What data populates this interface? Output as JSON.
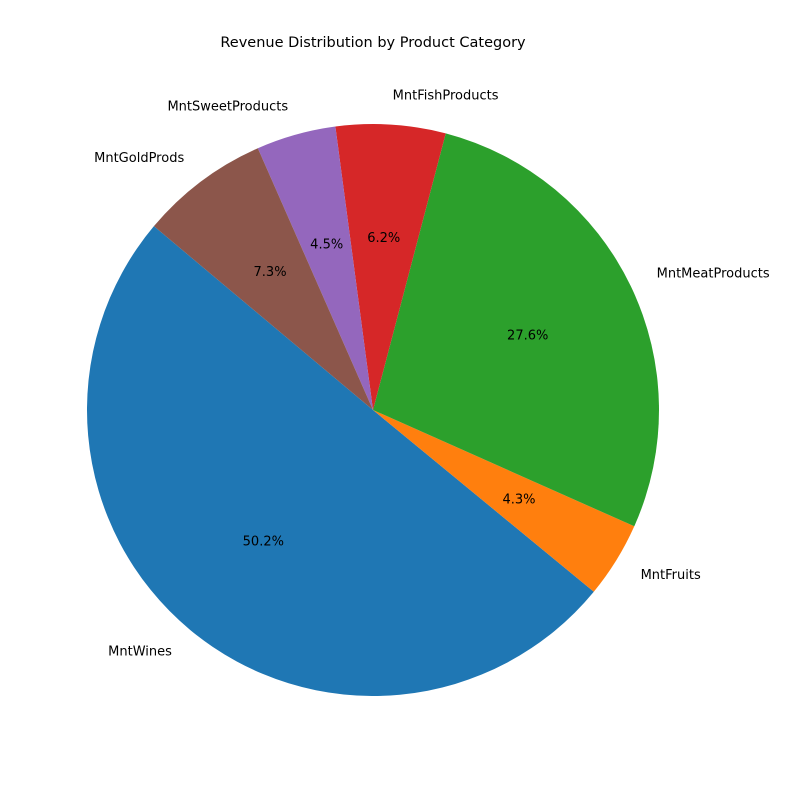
{
  "chart_data": {
    "type": "pie",
    "title": "Revenue Distribution by Product Category",
    "start_angle_deg": 140,
    "direction": "counterclockwise",
    "slices": [
      {
        "label": "MntWines",
        "percent": 50.2,
        "percent_label": "50.2%",
        "color": "#1f77b4"
      },
      {
        "label": "MntFruits",
        "percent": 4.3,
        "percent_label": "4.3%",
        "color": "#ff7f0e"
      },
      {
        "label": "MntMeatProducts",
        "percent": 27.6,
        "percent_label": "27.6%",
        "color": "#2ca02c"
      },
      {
        "label": "MntFishProducts",
        "percent": 6.2,
        "percent_label": "6.2%",
        "color": "#d62728"
      },
      {
        "label": "MntSweetProducts",
        "percent": 4.5,
        "percent_label": "4.5%",
        "color": "#9467bd"
      },
      {
        "label": "MntGoldProds",
        "percent": 7.3,
        "percent_label": "7.3%",
        "color": "#8c564b"
      }
    ]
  }
}
